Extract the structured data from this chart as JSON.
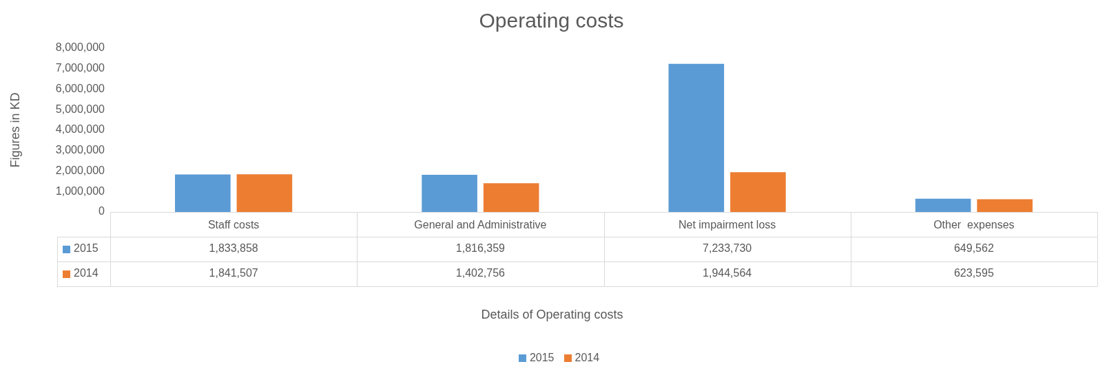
{
  "chart_data": {
    "type": "bar",
    "title": "Operating costs",
    "ylabel": "Figures in KD",
    "annotations": [
      "Details of Operating costs"
    ],
    "categories": [
      "Staff costs",
      "General and Administrative",
      "Net impairment loss",
      "Other  expenses"
    ],
    "series": [
      {
        "name": "2015",
        "color": "#5b9bd5",
        "values": [
          1833858,
          1816359,
          7233730,
          649562
        ],
        "value_labels": [
          "1,833,858",
          "1,816,359",
          "7,233,730",
          "649,562"
        ]
      },
      {
        "name": "2014",
        "color": "#ed7d31",
        "values": [
          1841507,
          1402756,
          1944564,
          623595
        ],
        "value_labels": [
          "1,841,507",
          "1,402,756",
          "1,944,564",
          "623,595"
        ]
      }
    ],
    "ylim": [
      0,
      8000000
    ],
    "yticks": [
      {
        "value": 0,
        "label": "0"
      },
      {
        "value": 1000000,
        "label": "1,000,000"
      },
      {
        "value": 2000000,
        "label": "2,000,000"
      },
      {
        "value": 3000000,
        "label": "3,000,000"
      },
      {
        "value": 4000000,
        "label": "4,000,000"
      },
      {
        "value": 5000000,
        "label": "5,000,000"
      },
      {
        "value": 6000000,
        "label": "6,000,000"
      },
      {
        "value": 7000000,
        "label": "7,000,000"
      },
      {
        "value": 8000000,
        "label": "8,000,000"
      }
    ],
    "grid": false,
    "legend": "bottom"
  }
}
